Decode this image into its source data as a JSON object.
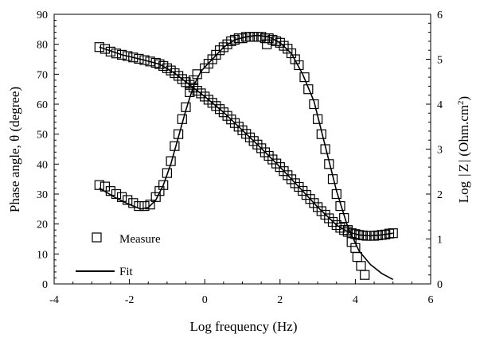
{
  "chart_data": {
    "type": "scatter",
    "xlabel": "Log frequency (Hz)",
    "ylabel_left": "Phase angle,  θ (degree)",
    "ylabel_right_prefix": "Log",
    "ylabel_right_z": "Z",
    "ylabel_right_unit": "(Ohm.cm",
    "ylabel_right_sup": "2",
    "ylabel_right_close": ")",
    "xlim": [
      -4,
      6
    ],
    "ylim_left": [
      0,
      90
    ],
    "ylim_right": [
      0,
      6
    ],
    "x_ticks": [
      "-4",
      "-2",
      "0",
      "2",
      "4",
      "6"
    ],
    "y_left_ticks": [
      "0",
      "10",
      "20",
      "30",
      "40",
      "50",
      "60",
      "70",
      "80",
      "90"
    ],
    "y_right_ticks": [
      "0",
      "1",
      "2",
      "3",
      "4",
      "5",
      "6"
    ],
    "legend": [
      {
        "label": "Measure",
        "marker": "open-square"
      },
      {
        "label": "Fit",
        "marker": "line"
      }
    ],
    "series": [
      {
        "name": "Measure",
        "axis": "left",
        "quantity": "phase angle",
        "style": "open-square",
        "points": [
          [
            -2.8,
            33
          ],
          [
            -2.65,
            32.5
          ],
          [
            -2.5,
            31
          ],
          [
            -2.35,
            30
          ],
          [
            -2.2,
            29
          ],
          [
            -2.05,
            28
          ],
          [
            -1.9,
            27
          ],
          [
            -1.75,
            26
          ],
          [
            -1.6,
            26
          ],
          [
            -1.45,
            26.5
          ],
          [
            -1.3,
            29
          ],
          [
            -1.2,
            31
          ],
          [
            -1.1,
            33
          ],
          [
            -1.0,
            37
          ],
          [
            -0.9,
            41
          ],
          [
            -0.8,
            46
          ],
          [
            -0.7,
            50
          ],
          [
            -0.6,
            55
          ],
          [
            -0.5,
            59
          ],
          [
            -0.4,
            64
          ],
          [
            -0.3,
            68
          ],
          [
            -0.2,
            70
          ],
          [
            0,
            72
          ],
          [
            0.1,
            73.5
          ],
          [
            0.2,
            75
          ],
          [
            0.3,
            76.5
          ],
          [
            0.4,
            78
          ],
          [
            0.5,
            79
          ],
          [
            0.6,
            80
          ],
          [
            0.7,
            81
          ],
          [
            0.8,
            81.5
          ],
          [
            0.9,
            82
          ],
          [
            1.0,
            82
          ],
          [
            1.1,
            82.5
          ],
          [
            1.2,
            82.5
          ],
          [
            1.3,
            82.5
          ],
          [
            1.4,
            82.5
          ],
          [
            1.5,
            82.5
          ],
          [
            1.6,
            82
          ],
          [
            1.65,
            80
          ],
          [
            1.7,
            82
          ],
          [
            1.8,
            81.5
          ],
          [
            1.9,
            81
          ],
          [
            2.0,
            80.5
          ],
          [
            2.1,
            79.5
          ],
          [
            2.2,
            78.5
          ],
          [
            2.3,
            77
          ],
          [
            2.4,
            75
          ],
          [
            2.5,
            73
          ],
          [
            2.65,
            69
          ],
          [
            2.75,
            65
          ],
          [
            2.9,
            60
          ],
          [
            3.0,
            55
          ],
          [
            3.1,
            50
          ],
          [
            3.2,
            45
          ],
          [
            3.3,
            40
          ],
          [
            3.4,
            35
          ],
          [
            3.5,
            30
          ],
          [
            3.6,
            26
          ],
          [
            3.7,
            22
          ],
          [
            3.8,
            18
          ],
          [
            3.9,
            14
          ],
          [
            4.0,
            12
          ],
          [
            4.05,
            9
          ],
          [
            4.15,
            6
          ],
          [
            4.25,
            3
          ]
        ]
      },
      {
        "name": "Measure",
        "axis": "right",
        "quantity": "log |Z|",
        "style": "open-square",
        "points": [
          [
            -2.8,
            5.27
          ],
          [
            -2.65,
            5.23
          ],
          [
            -2.5,
            5.17
          ],
          [
            -2.35,
            5.13
          ],
          [
            -2.2,
            5.1
          ],
          [
            -2.05,
            5.07
          ],
          [
            -1.9,
            5.04
          ],
          [
            -1.75,
            5.01
          ],
          [
            -1.6,
            4.98
          ],
          [
            -1.45,
            4.95
          ],
          [
            -1.3,
            4.92
          ],
          [
            -1.2,
            4.89
          ],
          [
            -1.1,
            4.85
          ],
          [
            -1.0,
            4.8
          ],
          [
            -0.9,
            4.75
          ],
          [
            -0.8,
            4.69
          ],
          [
            -0.7,
            4.63
          ],
          [
            -0.6,
            4.56
          ],
          [
            -0.5,
            4.49
          ],
          [
            -0.4,
            4.43
          ],
          [
            -0.3,
            4.37
          ],
          [
            -0.2,
            4.3
          ],
          [
            -0.1,
            4.24
          ],
          [
            0.0,
            4.17
          ],
          [
            0.1,
            4.1
          ],
          [
            0.2,
            4.03
          ],
          [
            0.3,
            3.96
          ],
          [
            0.4,
            3.89
          ],
          [
            0.5,
            3.82
          ],
          [
            0.6,
            3.74
          ],
          [
            0.7,
            3.66
          ],
          [
            0.8,
            3.58
          ],
          [
            0.9,
            3.5
          ],
          [
            1.0,
            3.42
          ],
          [
            1.1,
            3.34
          ],
          [
            1.2,
            3.26
          ],
          [
            1.3,
            3.18
          ],
          [
            1.4,
            3.1
          ],
          [
            1.5,
            3.02
          ],
          [
            1.6,
            2.93
          ],
          [
            1.7,
            2.85
          ],
          [
            1.8,
            2.77
          ],
          [
            1.9,
            2.68
          ],
          [
            2.0,
            2.6
          ],
          [
            2.1,
            2.51
          ],
          [
            2.2,
            2.42
          ],
          [
            2.3,
            2.33
          ],
          [
            2.4,
            2.24
          ],
          [
            2.5,
            2.16
          ],
          [
            2.6,
            2.07
          ],
          [
            2.7,
            1.98
          ],
          [
            2.8,
            1.89
          ],
          [
            2.9,
            1.8
          ],
          [
            3.0,
            1.71
          ],
          [
            3.1,
            1.62
          ],
          [
            3.2,
            1.54
          ],
          [
            3.3,
            1.46
          ],
          [
            3.4,
            1.38
          ],
          [
            3.5,
            1.31
          ],
          [
            3.6,
            1.25
          ],
          [
            3.7,
            1.2
          ],
          [
            3.8,
            1.16
          ],
          [
            3.9,
            1.13
          ],
          [
            4.0,
            1.11
          ],
          [
            4.1,
            1.09
          ],
          [
            4.2,
            1.08
          ],
          [
            4.3,
            1.07
          ],
          [
            4.4,
            1.07
          ],
          [
            4.5,
            1.07
          ],
          [
            4.6,
            1.08
          ],
          [
            4.7,
            1.09
          ],
          [
            4.8,
            1.1
          ],
          [
            4.9,
            1.12
          ],
          [
            5.0,
            1.13
          ]
        ]
      },
      {
        "name": "Fit",
        "axis": "left",
        "quantity": "phase angle",
        "style": "line",
        "points": [
          [
            -2.8,
            32
          ],
          [
            -2.4,
            29
          ],
          [
            -2.0,
            26.5
          ],
          [
            -1.7,
            25
          ],
          [
            -1.5,
            25.5
          ],
          [
            -1.3,
            28
          ],
          [
            -1.1,
            33
          ],
          [
            -0.9,
            40
          ],
          [
            -0.7,
            49
          ],
          [
            -0.5,
            58
          ],
          [
            -0.3,
            66
          ],
          [
            -0.1,
            71
          ],
          [
            0.2,
            75
          ],
          [
            0.5,
            79
          ],
          [
            0.8,
            81.5
          ],
          [
            1.1,
            82.5
          ],
          [
            1.4,
            83
          ],
          [
            1.7,
            82.5
          ],
          [
            2.0,
            80.5
          ],
          [
            2.3,
            77
          ],
          [
            2.6,
            70
          ],
          [
            2.9,
            61
          ],
          [
            3.2,
            46
          ],
          [
            3.5,
            31
          ],
          [
            3.8,
            19
          ],
          [
            4.1,
            11
          ],
          [
            4.4,
            6.5
          ],
          [
            4.7,
            3.5
          ],
          [
            5.0,
            1.5
          ]
        ]
      },
      {
        "name": "Fit",
        "axis": "right",
        "quantity": "log |Z|",
        "style": "line",
        "points": [
          [
            -2.8,
            5.27
          ],
          [
            -2.2,
            5.1
          ],
          [
            -1.6,
            4.98
          ],
          [
            -1.2,
            4.89
          ],
          [
            -0.8,
            4.69
          ],
          [
            -0.4,
            4.43
          ],
          [
            0,
            4.17
          ],
          [
            0.5,
            3.82
          ],
          [
            1.0,
            3.42
          ],
          [
            1.5,
            3.02
          ],
          [
            2.0,
            2.6
          ],
          [
            2.5,
            2.16
          ],
          [
            3.0,
            1.71
          ],
          [
            3.5,
            1.31
          ],
          [
            3.8,
            1.16
          ],
          [
            4.1,
            1.09
          ],
          [
            4.4,
            1.07
          ],
          [
            4.7,
            1.09
          ],
          [
            5.0,
            1.13
          ]
        ]
      }
    ]
  }
}
